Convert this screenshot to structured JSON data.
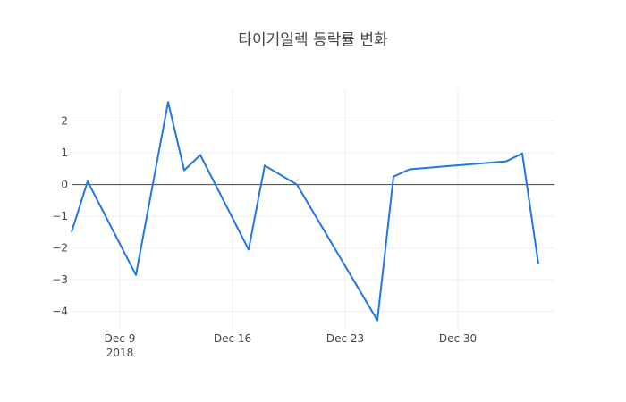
{
  "chart_data": {
    "type": "line",
    "title": "타이거일렉 등락률 변화",
    "xlabel": "",
    "ylabel": "",
    "x_range": [
      "2018-12-06",
      "2019-01-05"
    ],
    "ylim": [
      -4.6,
      3.0
    ],
    "grid": true,
    "zero_line": true,
    "line_color": "#1f77e0",
    "x_ticks": [
      {
        "date": "2018-12-09",
        "label": "Dec 9",
        "sublabel": "2018"
      },
      {
        "date": "2018-12-16",
        "label": "Dec 16",
        "sublabel": ""
      },
      {
        "date": "2018-12-23",
        "label": "Dec 23",
        "sublabel": ""
      },
      {
        "date": "2018-12-30",
        "label": "Dec 30",
        "sublabel": ""
      }
    ],
    "y_ticks": [
      {
        "value": 2,
        "label": "2"
      },
      {
        "value": 1,
        "label": "1"
      },
      {
        "value": 0,
        "label": "0"
      },
      {
        "value": -1,
        "label": "−1"
      },
      {
        "value": -2,
        "label": "−2"
      },
      {
        "value": -3,
        "label": "−3"
      },
      {
        "value": -4,
        "label": "−4"
      }
    ],
    "series": [
      {
        "x": [
          "2018-12-06",
          "2018-12-07",
          "2018-12-10",
          "2018-12-12",
          "2018-12-13",
          "2018-12-14",
          "2018-12-17",
          "2018-12-18",
          "2018-12-20",
          "2018-12-25",
          "2018-12-26",
          "2018-12-27",
          "2019-01-02",
          "2019-01-03",
          "2019-01-04"
        ],
        "y": [
          -1.5,
          0.1,
          -2.85,
          2.6,
          0.45,
          0.93,
          -2.05,
          0.6,
          0.0,
          -4.28,
          0.25,
          0.48,
          0.73,
          0.98,
          -2.5
        ]
      }
    ]
  }
}
